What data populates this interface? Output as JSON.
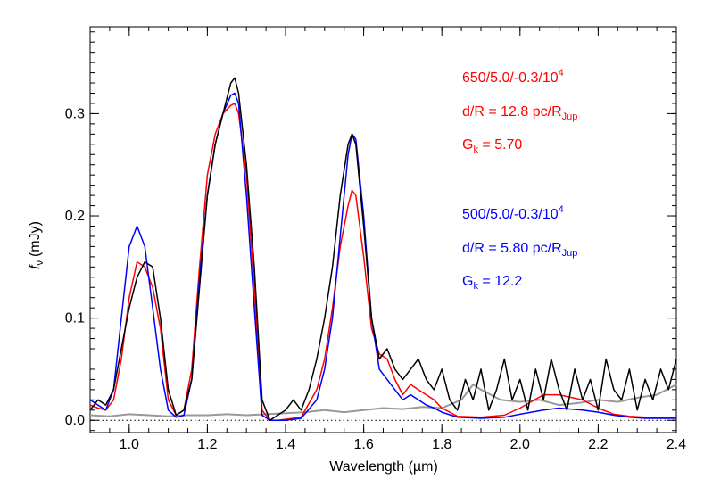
{
  "chart_data": {
    "type": "line",
    "xlabel": "Wavelength (µm)",
    "ylabel_main": "f",
    "ylabel_sub": "ν",
    "ylabel_unit": "(mJy)",
    "xlim": [
      0.9,
      2.4
    ],
    "ylim": [
      -0.012,
      0.385
    ],
    "xticks": [
      1.0,
      1.2,
      1.4,
      1.6,
      1.8,
      2.0,
      2.2,
      2.4
    ],
    "xtick_labels": [
      "1.0",
      "1.2",
      "1.4",
      "1.6",
      "1.8",
      "2.0",
      "2.2",
      "2.4"
    ],
    "yticks": [
      0.0,
      0.1,
      0.2,
      0.3
    ],
    "ytick_labels": [
      "0.0",
      "0.1",
      "0.2",
      "0.3"
    ],
    "zero_line": true,
    "colors": {
      "observed": "#000000",
      "model_650": "#ff0000",
      "model_500": "#0000ff",
      "noise": "#999999"
    },
    "annotations": {
      "red": {
        "line1": "650/5.0/-0.3/10",
        "line1_sup": "4",
        "line2": "d/R = 12.8 pc/R",
        "line2_sub": "Jup",
        "line3": "G",
        "line3_sub": "k",
        "line3_rest": " = 5.70"
      },
      "blue": {
        "line1": "500/5.0/-0.3/10",
        "line1_sup": "4",
        "line2": "d/R = 5.80 pc/R",
        "line2_sub": "Jup",
        "line3": "G",
        "line3_sub": "k",
        "line3_rest": " = 12.2"
      }
    },
    "series": [
      {
        "key": "observed",
        "x": [
          0.9,
          0.92,
          0.94,
          0.96,
          0.98,
          1.0,
          1.02,
          1.04,
          1.06,
          1.08,
          1.1,
          1.12,
          1.14,
          1.16,
          1.18,
          1.2,
          1.22,
          1.24,
          1.26,
          1.27,
          1.28,
          1.3,
          1.32,
          1.34,
          1.36,
          1.38,
          1.4,
          1.42,
          1.44,
          1.46,
          1.48,
          1.5,
          1.52,
          1.54,
          1.56,
          1.57,
          1.58,
          1.6,
          1.62,
          1.64,
          1.66,
          1.68,
          1.7,
          1.72,
          1.74,
          1.76,
          1.78,
          1.8,
          1.82,
          1.84,
          1.86,
          1.88,
          1.9,
          1.92,
          1.94,
          1.96,
          1.98,
          2.0,
          2.02,
          2.04,
          2.06,
          2.08,
          2.1,
          2.12,
          2.14,
          2.16,
          2.18,
          2.2,
          2.22,
          2.24,
          2.26,
          2.28,
          2.3,
          2.32,
          2.34,
          2.36,
          2.38,
          2.4
        ],
        "values": [
          0.01,
          0.02,
          0.015,
          0.03,
          0.07,
          0.11,
          0.14,
          0.155,
          0.15,
          0.1,
          0.03,
          0.005,
          0.01,
          0.04,
          0.13,
          0.22,
          0.27,
          0.3,
          0.33,
          0.335,
          0.32,
          0.25,
          0.15,
          0.02,
          0.0,
          0.005,
          0.01,
          0.02,
          0.01,
          0.03,
          0.06,
          0.1,
          0.15,
          0.22,
          0.27,
          0.28,
          0.27,
          0.19,
          0.1,
          0.06,
          0.07,
          0.05,
          0.04,
          0.05,
          0.06,
          0.04,
          0.03,
          0.05,
          0.02,
          0.01,
          0.04,
          0.02,
          0.05,
          0.01,
          0.03,
          0.06,
          0.02,
          0.04,
          0.01,
          0.05,
          0.02,
          0.06,
          0.03,
          0.01,
          0.05,
          0.02,
          0.04,
          0.01,
          0.06,
          0.03,
          0.02,
          0.05,
          0.01,
          0.04,
          0.02,
          0.05,
          0.03,
          0.06
        ]
      },
      {
        "key": "model_650",
        "x": [
          0.9,
          0.92,
          0.94,
          0.96,
          0.98,
          1.0,
          1.02,
          1.04,
          1.06,
          1.08,
          1.1,
          1.12,
          1.14,
          1.16,
          1.18,
          1.2,
          1.22,
          1.24,
          1.26,
          1.27,
          1.28,
          1.3,
          1.32,
          1.34,
          1.36,
          1.38,
          1.4,
          1.44,
          1.48,
          1.5,
          1.52,
          1.54,
          1.56,
          1.57,
          1.58,
          1.6,
          1.62,
          1.64,
          1.66,
          1.68,
          1.7,
          1.72,
          1.74,
          1.76,
          1.78,
          1.8,
          1.84,
          1.9,
          1.96,
          2.0,
          2.06,
          2.1,
          2.16,
          2.2,
          2.24,
          2.28,
          2.32,
          2.36,
          2.4
        ],
        "values": [
          0.015,
          0.012,
          0.01,
          0.02,
          0.06,
          0.12,
          0.155,
          0.15,
          0.13,
          0.09,
          0.02,
          0.005,
          0.01,
          0.05,
          0.15,
          0.24,
          0.28,
          0.3,
          0.308,
          0.31,
          0.3,
          0.24,
          0.13,
          0.01,
          0.0,
          0.0,
          0.001,
          0.003,
          0.03,
          0.06,
          0.11,
          0.17,
          0.21,
          0.225,
          0.22,
          0.16,
          0.09,
          0.065,
          0.06,
          0.04,
          0.025,
          0.035,
          0.03,
          0.025,
          0.02,
          0.012,
          0.004,
          0.003,
          0.005,
          0.012,
          0.025,
          0.025,
          0.02,
          0.012,
          0.006,
          0.004,
          0.003,
          0.003,
          0.003
        ]
      },
      {
        "key": "model_500",
        "x": [
          0.9,
          0.92,
          0.94,
          0.96,
          0.98,
          1.0,
          1.02,
          1.04,
          1.06,
          1.08,
          1.1,
          1.12,
          1.14,
          1.16,
          1.18,
          1.2,
          1.22,
          1.24,
          1.26,
          1.27,
          1.28,
          1.3,
          1.32,
          1.34,
          1.36,
          1.38,
          1.4,
          1.44,
          1.48,
          1.5,
          1.52,
          1.54,
          1.56,
          1.57,
          1.58,
          1.6,
          1.62,
          1.64,
          1.66,
          1.68,
          1.7,
          1.72,
          1.74,
          1.76,
          1.78,
          1.8,
          1.84,
          1.9,
          1.96,
          2.0,
          2.06,
          2.1,
          2.16,
          2.2,
          2.24,
          2.28,
          2.32,
          2.36,
          2.4
        ],
        "values": [
          0.02,
          0.015,
          0.01,
          0.03,
          0.1,
          0.17,
          0.19,
          0.17,
          0.11,
          0.05,
          0.01,
          0.003,
          0.005,
          0.04,
          0.14,
          0.22,
          0.27,
          0.3,
          0.318,
          0.32,
          0.31,
          0.22,
          0.11,
          0.005,
          0.0,
          0.0,
          0.0,
          0.002,
          0.02,
          0.05,
          0.1,
          0.18,
          0.26,
          0.28,
          0.275,
          0.2,
          0.1,
          0.05,
          0.04,
          0.03,
          0.02,
          0.025,
          0.02,
          0.015,
          0.012,
          0.008,
          0.003,
          0.002,
          0.003,
          0.006,
          0.01,
          0.012,
          0.01,
          0.008,
          0.005,
          0.003,
          0.002,
          0.002,
          0.002
        ]
      },
      {
        "key": "noise",
        "x": [
          0.9,
          0.95,
          1.0,
          1.05,
          1.1,
          1.15,
          1.2,
          1.25,
          1.3,
          1.35,
          1.4,
          1.45,
          1.5,
          1.55,
          1.6,
          1.65,
          1.7,
          1.75,
          1.8,
          1.85,
          1.88,
          1.9,
          1.95,
          2.0,
          2.05,
          2.1,
          2.15,
          2.2,
          2.25,
          2.3,
          2.35,
          2.4
        ],
        "values": [
          0.005,
          0.004,
          0.006,
          0.005,
          0.004,
          0.005,
          0.005,
          0.006,
          0.005,
          0.006,
          0.007,
          0.008,
          0.01,
          0.008,
          0.01,
          0.012,
          0.011,
          0.013,
          0.012,
          0.02,
          0.035,
          0.03,
          0.02,
          0.018,
          0.02,
          0.015,
          0.017,
          0.02,
          0.018,
          0.022,
          0.025,
          0.035
        ]
      }
    ]
  }
}
